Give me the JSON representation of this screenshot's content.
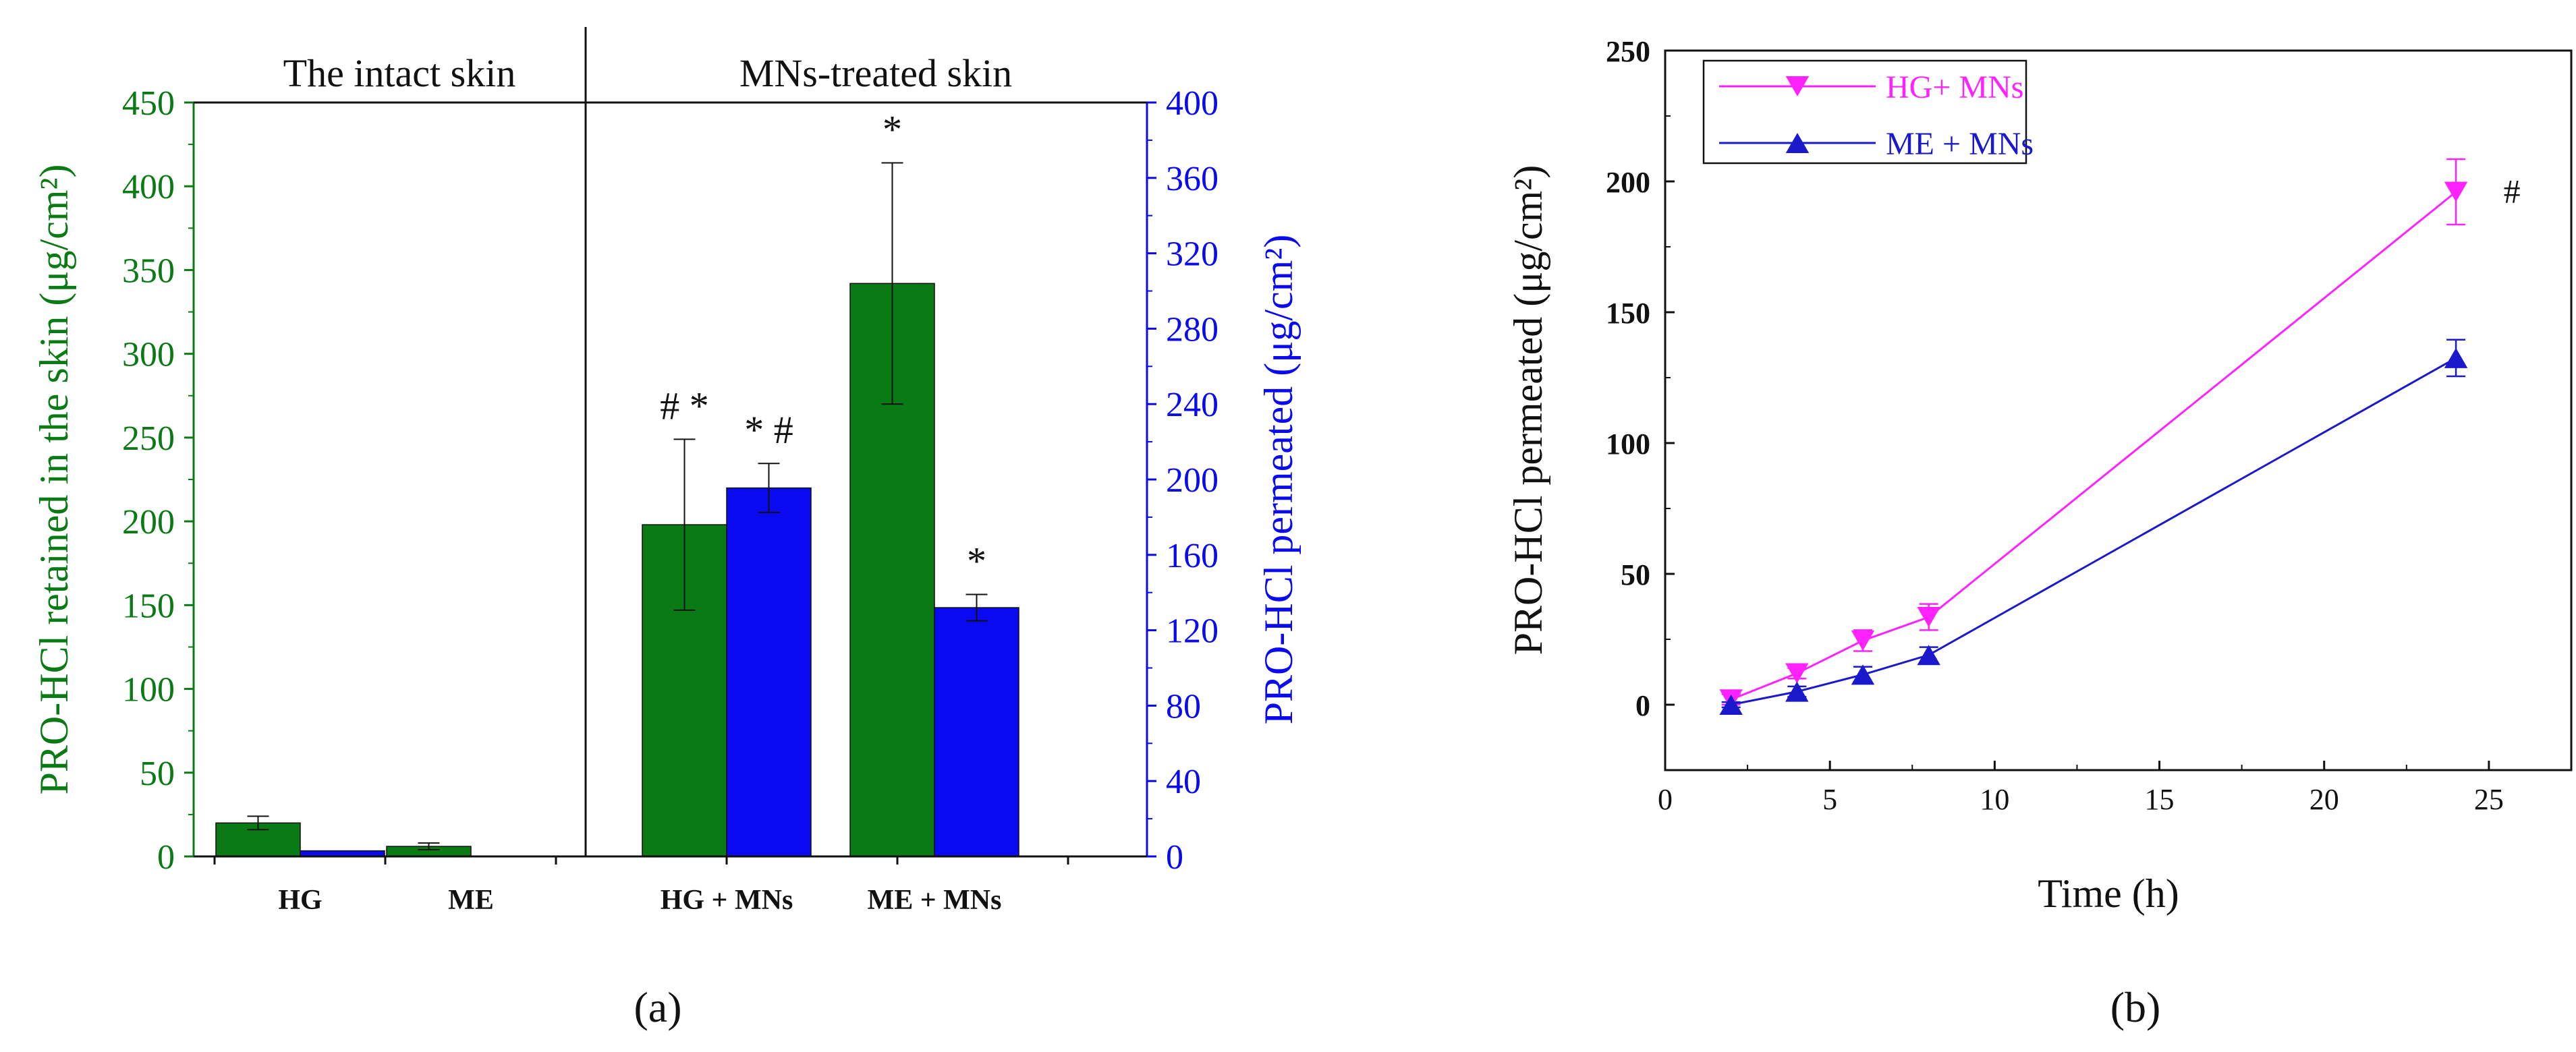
{
  "colors": {
    "green": "#0a7a14",
    "blue": "#0a0af0",
    "magenta": "#ff22ff",
    "dark_blue": "#1a1acc",
    "black": "#111111"
  },
  "chart_data": [
    {
      "type": "bar",
      "panel_label": "(a)",
      "section_labels": [
        "The intact skin",
        "MNs-treated skin"
      ],
      "categories": [
        "HG",
        "ME",
        "HG + MNs",
        "ME + MNs"
      ],
      "ylabel": "PRO-HCl retained in the skin (μg/cm²)",
      "y2label": "PRO-HCl permeated (μg/cm²)",
      "ylim": [
        0,
        450
      ],
      "yticks": [
        0,
        50,
        100,
        150,
        200,
        250,
        300,
        350,
        400,
        450
      ],
      "y2lim": [
        0,
        400
      ],
      "y2ticks": [
        0,
        40,
        80,
        120,
        160,
        200,
        240,
        280,
        320,
        360,
        400
      ],
      "series": [
        {
          "name": "PRO-HCl retained in the skin",
          "axis": "left",
          "color": "#0a7a14",
          "values": [
            20,
            6,
            198,
            342
          ],
          "errors": [
            4,
            2,
            51,
            72
          ],
          "annotations": [
            "",
            "",
            "# *",
            "*"
          ]
        },
        {
          "name": "PRO-HCl permeated",
          "axis": "right",
          "color": "#0a0af0",
          "values": [
            3,
            0,
            195.5,
            132
          ],
          "errors": [
            0,
            0,
            13,
            7
          ],
          "annotations": [
            "",
            "",
            "* #",
            "*"
          ]
        }
      ]
    },
    {
      "type": "line",
      "panel_label": "(b)",
      "xlabel": "Time (h)",
      "ylabel": "PRO-HCl permeated (μg/cm²)",
      "xlim": [
        0,
        27.5
      ],
      "xticks": [
        0,
        5,
        10,
        15,
        20,
        25
      ],
      "ylim": [
        -25,
        250
      ],
      "yticks": [
        0,
        50,
        100,
        150,
        200,
        250
      ],
      "x": [
        2,
        4,
        6,
        8,
        24
      ],
      "series": [
        {
          "name": "HG+ MNs",
          "marker": "triangle-down",
          "color": "#ff22ff",
          "values": [
            2,
            12,
            24.5,
            33.5,
            196
          ],
          "errors": [
            2,
            2,
            4,
            5,
            12.5
          ]
        },
        {
          "name": "ME + MNs",
          "marker": "triangle-up",
          "color": "#1a1acc",
          "values": [
            0,
            5,
            11.5,
            19,
            132.5
          ],
          "errors": [
            1,
            2,
            3,
            3,
            7
          ]
        }
      ],
      "annotations": [
        {
          "x": 25.7,
          "y": 196,
          "text": "#"
        }
      ]
    }
  ]
}
